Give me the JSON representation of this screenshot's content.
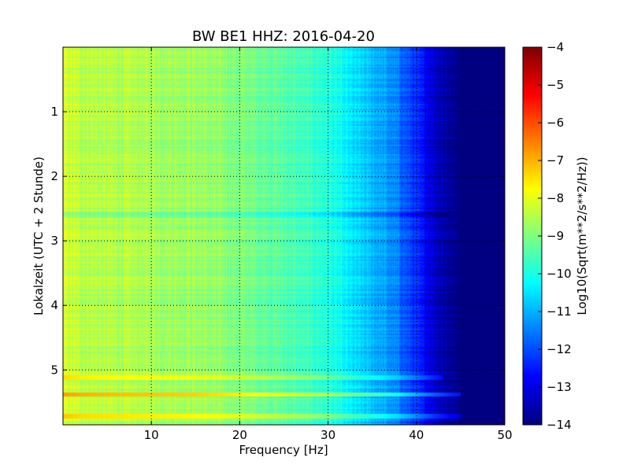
{
  "chart_data": {
    "type": "heatmap",
    "title": "BW BE1 HHZ: 2016-04-20",
    "xlabel": "Frequency [Hz]",
    "ylabel": "Lokalzeit (UTC + 2 Stunde)",
    "colorbar_label": "Log10(Sqrt(m**2/s**2/Hz))",
    "xlim": [
      0,
      50
    ],
    "ylim": [
      0,
      5.85
    ],
    "y_inverted": true,
    "x_ticks": [
      10,
      20,
      30,
      40,
      50
    ],
    "y_ticks": [
      1,
      2,
      3,
      4,
      5
    ],
    "color_range": [
      -14,
      -4
    ],
    "colorbar_ticks": [
      -4,
      -5,
      -6,
      -7,
      -8,
      -9,
      -10,
      -11,
      -12,
      -13,
      -14
    ],
    "colormap": "jet",
    "grid": true,
    "frequency_profile": {
      "frequencies": [
        0,
        2,
        5,
        10,
        15,
        20,
        25,
        30,
        33,
        36,
        38,
        40,
        42,
        44,
        45,
        50
      ],
      "level": [
        -8.2,
        -8.4,
        -8.5,
        -8.6,
        -8.7,
        -9.0,
        -9.4,
        -9.9,
        -10.6,
        -11.1,
        -11.6,
        -12.4,
        -13.2,
        -13.8,
        -14,
        -14
      ]
    },
    "noisy_bands": [
      {
        "time": 2.6,
        "level_offset": -0.6,
        "fmax": 44
      },
      {
        "time": 5.12,
        "level_offset": 0.8,
        "fmax": 43
      },
      {
        "time": 5.38,
        "level_offset": 1.4,
        "fmax": 46
      },
      {
        "time": 5.72,
        "level_offset": 1.0,
        "fmax": 46
      }
    ]
  }
}
